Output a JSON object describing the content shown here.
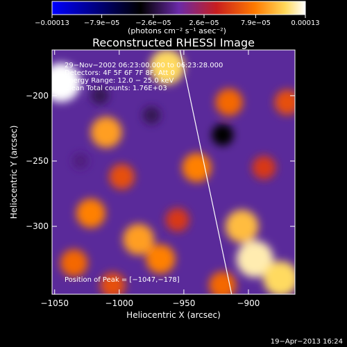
{
  "chart_data": {
    "type": "heatmap",
    "title": "Reconstructed RHESSI Image",
    "xlabel": "Heliocentric X (arcsec)",
    "ylabel": "Heliocentric Y (arcsec)",
    "xlim": [
      -1052,
      -864
    ],
    "ylim": [
      -352,
      -165
    ],
    "x_ticks": [
      {
        "value": -1050,
        "label": "−1050"
      },
      {
        "value": -1000,
        "label": "−1000"
      },
      {
        "value": -950,
        "label": "−950"
      },
      {
        "value": -900,
        "label": "−900"
      }
    ],
    "y_ticks": [
      {
        "value": -200,
        "label": "−200"
      },
      {
        "value": -250,
        "label": "−250"
      },
      {
        "value": -300,
        "label": "−300"
      }
    ],
    "colorbar": {
      "min": -0.00013,
      "max": 0.00013,
      "ticks": [
        {
          "value": -0.00013,
          "label": "−0.00013"
        },
        {
          "value": -7.9e-05,
          "label": "−7.9e−05"
        },
        {
          "value": -2.6e-05,
          "label": "−2.6e−05"
        },
        {
          "value": 2.6e-05,
          "label": "2.6e−05"
        },
        {
          "value": 7.9e-05,
          "label": "7.9e−05"
        },
        {
          "value": 0.00013,
          "label": "0.00013"
        }
      ],
      "units_label": "(photons cm⁻² s⁻¹ asec⁻²)",
      "palette": [
        "#0000ff",
        "#000000",
        "#6a2aa8",
        "#c81e1e",
        "#ff7a00",
        "#ffd85a",
        "#ffffff"
      ]
    },
    "annotations": [
      "29−Nov−2002 06:23:00.000 to 06:23:28.000",
      "Detectors: 4F 5F 6F 7F 8F, Att 0",
      "Energy Range: 12.0 − 25.0 keV",
      "Clean    Total counts: 1.76E+03"
    ],
    "peak_text": "Position of Peak = [−1047,−178]",
    "limb_line": [
      {
        "x": -953,
        "y": -165
      },
      {
        "x": -913,
        "y": -352
      }
    ],
    "hotspots": [
      {
        "x": -1045,
        "y": -190,
        "v": 0.00013
      },
      {
        "x": -963,
        "y": -178,
        "v": 0.00011
      },
      {
        "x": -1010,
        "y": -228,
        "v": 9e-05
      },
      {
        "x": -1022,
        "y": -290,
        "v": 8e-05
      },
      {
        "x": -1035,
        "y": -328,
        "v": 7e-05
      },
      {
        "x": -985,
        "y": -310,
        "v": 9e-05
      },
      {
        "x": -968,
        "y": -325,
        "v": 8e-05
      },
      {
        "x": -940,
        "y": -255,
        "v": 8e-05
      },
      {
        "x": -905,
        "y": -300,
        "v": 0.0001
      },
      {
        "x": -895,
        "y": -325,
        "v": 0.00012
      },
      {
        "x": -875,
        "y": -340,
        "v": 0.00011
      },
      {
        "x": -920,
        "y": -345,
        "v": 7e-05
      },
      {
        "x": -998,
        "y": -262,
        "v": 6e-05
      },
      {
        "x": -915,
        "y": -205,
        "v": 7e-05
      },
      {
        "x": -870,
        "y": -205,
        "v": 6e-05
      },
      {
        "x": -888,
        "y": -255,
        "v": 5e-05
      },
      {
        "x": -955,
        "y": -295,
        "v": 5e-05
      },
      {
        "x": -1005,
        "y": -345,
        "v": 6e-05
      },
      {
        "x": -975,
        "y": -215,
        "v": -2e-05
      },
      {
        "x": -920,
        "y": -230,
        "v": -4e-05
      },
      {
        "x": -1015,
        "y": -200,
        "v": -2e-05
      },
      {
        "x": -1030,
        "y": -250,
        "v": -1e-05
      }
    ]
  },
  "footer": {
    "date": "19−Apr−2013 16:24"
  }
}
